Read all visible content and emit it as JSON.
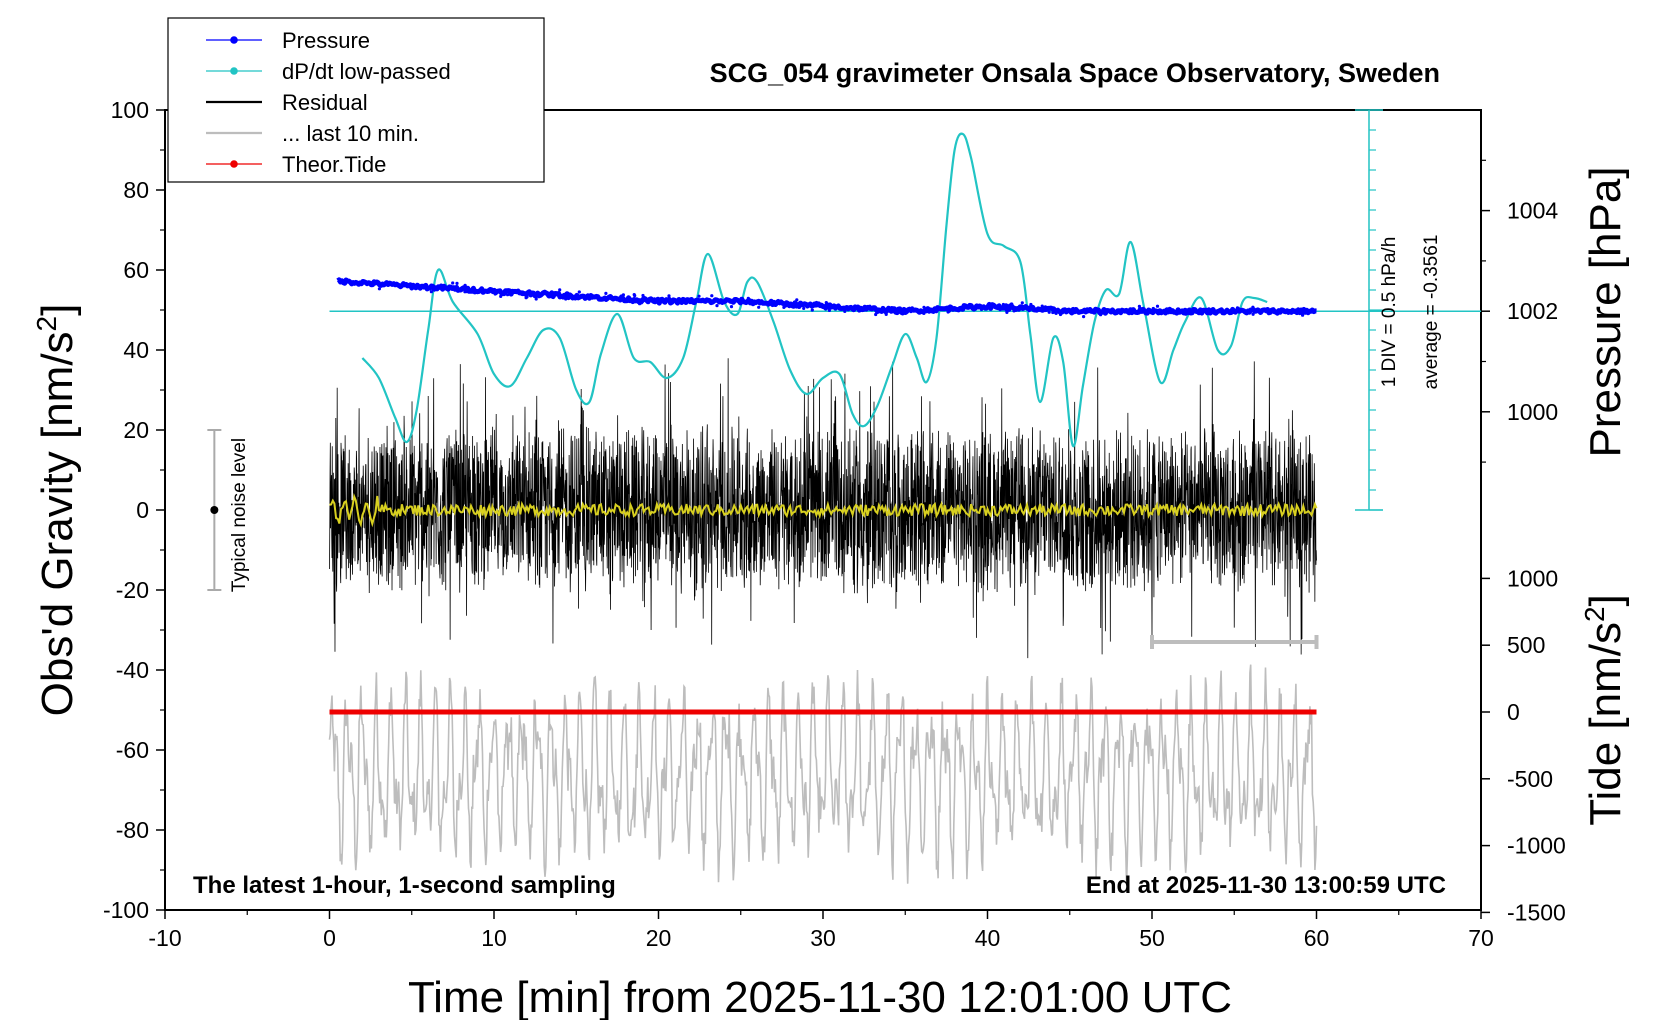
{
  "chart_data": {
    "type": "line",
    "title": "SCG_054 gravimeter Onsala Space Observatory, Sweden",
    "xlabel": "Time [min] from 2025-11-30 12:01:00 UTC",
    "ylabel_main": "Obs'd Gravity [nm/s",
    "ylabel_main_sup": "2",
    "ylabel_main_close": "]",
    "ylabel_pressure": "Pressure [hPa]",
    "ylabel_tide": "Tide [nm/s",
    "ylabel_tide_sup": "2",
    "ylabel_tide_close": "]",
    "xlim": [
      -10,
      70
    ],
    "ylim": [
      -100,
      100
    ],
    "pressure_lim": [
      996,
      1006
    ],
    "tide_lim": [
      -1500,
      1500
    ],
    "x_ticks": [
      "-10",
      "0",
      "10",
      "20",
      "30",
      "40",
      "50",
      "60",
      "70"
    ],
    "y_ticks": [
      "100",
      "80",
      "60",
      "40",
      "20",
      "0",
      "-20",
      "-40",
      "-60",
      "-80",
      "-100"
    ],
    "pressure_ticks": [
      "1004",
      "1002",
      "1000"
    ],
    "tide_ticks": [
      "1000",
      "500",
      "0",
      "-500",
      "-1000",
      "-1500"
    ],
    "legend": {
      "position": "top-left",
      "entries": [
        {
          "label": "Pressure",
          "color": "#0000ff",
          "marker": "dot"
        },
        {
          "label": "dP/dt low-passed",
          "color": "#22c4c4",
          "marker": "dot"
        },
        {
          "label": "Residual",
          "color": "#000000",
          "marker": "line"
        },
        {
          "label": "... last 10 min.",
          "color": "#bdbdbd",
          "marker": "line"
        },
        {
          "label": "Theor.Tide",
          "color": "#ee0000",
          "marker": "dot"
        }
      ]
    },
    "annotations": {
      "bottom_left": "The latest 1-hour, 1-second sampling",
      "bottom_right": "End at 2025-11-30 13:00:59 UTC",
      "noise": "Typical noise level",
      "dpdt_scale": "1 DIV = 0.5 hPa/h",
      "dpdt_average": "average = -0.3561"
    },
    "noise_bar": {
      "x": -7,
      "center": 0,
      "half_range": 20
    },
    "series": [
      {
        "name": "Pressure",
        "color": "#0000ff",
        "axis": "pressure",
        "x": [
          0.5,
          5,
          10,
          15,
          20,
          25,
          30,
          35,
          40,
          45,
          50,
          55,
          60
        ],
        "values": [
          1002.6,
          1002.5,
          1002.4,
          1002.3,
          1002.2,
          1002.2,
          1002.1,
          1002.0,
          1002.1,
          1002.0,
          1002.0,
          1002.0,
          1002.0
        ]
      },
      {
        "name": "dP/dt low-passed",
        "color": "#22c4c4",
        "axis": "main",
        "x": [
          2,
          3,
          4,
          4.7,
          5.3,
          6,
          6.6,
          7.5,
          9,
          10,
          11,
          12,
          13,
          14,
          15,
          15.8,
          16.5,
          17.5,
          18.5,
          19.5,
          20.5,
          21.5,
          22.3,
          23,
          24,
          24.8,
          25.4,
          26,
          27,
          28,
          29,
          30,
          31,
          31.8,
          32.5,
          33.3,
          34.2,
          35,
          35.7,
          36.3,
          36.9,
          37.5,
          38,
          38.5,
          39,
          40,
          41,
          42,
          42.6,
          43.2,
          44,
          44.6,
          45.2,
          45.8,
          46.5,
          47.2,
          48,
          48.7,
          49.5,
          50.5,
          51.3,
          52,
          53,
          54,
          54.8,
          55.5,
          56.2,
          57
        ],
        "values": [
          38,
          33,
          23,
          17,
          25,
          45,
          60,
          52,
          44,
          34,
          31,
          38,
          45,
          43,
          30,
          27,
          39,
          49,
          38,
          37,
          33,
          38,
          52,
          64,
          52,
          49,
          57,
          57,
          47,
          35,
          29,
          33,
          34,
          24,
          21,
          26,
          36,
          44,
          38,
          32,
          43,
          71,
          90,
          94,
          88,
          69,
          66,
          62,
          44,
          27,
          43,
          37,
          16,
          31,
          47,
          55,
          54,
          67,
          51,
          32,
          40,
          47,
          53,
          40,
          41,
          52,
          53,
          52
        ]
      },
      {
        "name": "Residual",
        "color": "#000000",
        "axis": "main",
        "x": [
          0,
          60
        ],
        "envelope": [
          -35,
          38
        ]
      },
      {
        "name": "... last 10 min.",
        "color": "#bdbdbd",
        "axis": "main",
        "x": [
          0,
          60
        ],
        "envelope": [
          -92,
          -40
        ]
      },
      {
        "name": "Theor.Tide",
        "color": "#ee0000",
        "axis": "tide",
        "x": [
          0,
          15,
          30,
          45,
          60
        ],
        "values": [
          0,
          0,
          0,
          0,
          0
        ]
      }
    ],
    "grid": false
  }
}
